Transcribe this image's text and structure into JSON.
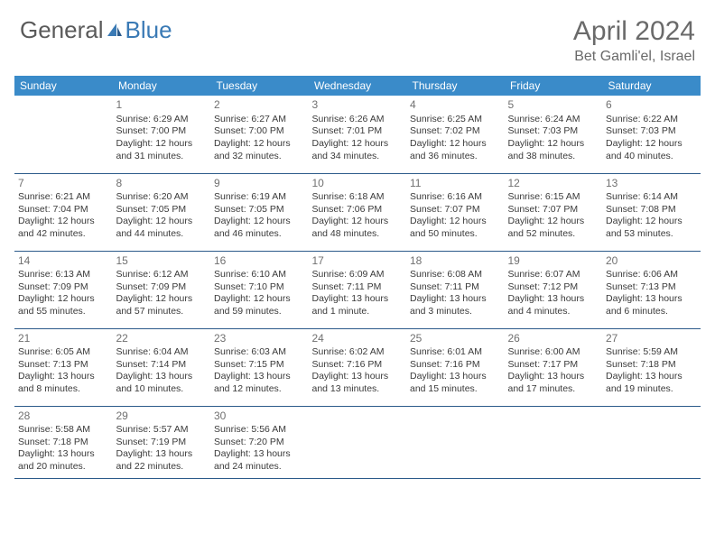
{
  "brand": {
    "part1": "General",
    "part2": "Blue"
  },
  "title": "April 2024",
  "location": "Bet Gamli'el, Israel",
  "day_headers": [
    "Sunday",
    "Monday",
    "Tuesday",
    "Wednesday",
    "Thursday",
    "Friday",
    "Saturday"
  ],
  "colors": {
    "header_bg": "#3a8bc9",
    "header_text": "#ffffff",
    "border": "#2b5a8a",
    "brand_blue": "#3a7ab5",
    "text": "#3a3a3a",
    "muted": "#6a6a6a"
  },
  "weeks": [
    [
      {},
      {
        "n": "1",
        "sr": "Sunrise: 6:29 AM",
        "ss": "Sunset: 7:00 PM",
        "d1": "Daylight: 12 hours",
        "d2": "and 31 minutes."
      },
      {
        "n": "2",
        "sr": "Sunrise: 6:27 AM",
        "ss": "Sunset: 7:00 PM",
        "d1": "Daylight: 12 hours",
        "d2": "and 32 minutes."
      },
      {
        "n": "3",
        "sr": "Sunrise: 6:26 AM",
        "ss": "Sunset: 7:01 PM",
        "d1": "Daylight: 12 hours",
        "d2": "and 34 minutes."
      },
      {
        "n": "4",
        "sr": "Sunrise: 6:25 AM",
        "ss": "Sunset: 7:02 PM",
        "d1": "Daylight: 12 hours",
        "d2": "and 36 minutes."
      },
      {
        "n": "5",
        "sr": "Sunrise: 6:24 AM",
        "ss": "Sunset: 7:03 PM",
        "d1": "Daylight: 12 hours",
        "d2": "and 38 minutes."
      },
      {
        "n": "6",
        "sr": "Sunrise: 6:22 AM",
        "ss": "Sunset: 7:03 PM",
        "d1": "Daylight: 12 hours",
        "d2": "and 40 minutes."
      }
    ],
    [
      {
        "n": "7",
        "sr": "Sunrise: 6:21 AM",
        "ss": "Sunset: 7:04 PM",
        "d1": "Daylight: 12 hours",
        "d2": "and 42 minutes."
      },
      {
        "n": "8",
        "sr": "Sunrise: 6:20 AM",
        "ss": "Sunset: 7:05 PM",
        "d1": "Daylight: 12 hours",
        "d2": "and 44 minutes."
      },
      {
        "n": "9",
        "sr": "Sunrise: 6:19 AM",
        "ss": "Sunset: 7:05 PM",
        "d1": "Daylight: 12 hours",
        "d2": "and 46 minutes."
      },
      {
        "n": "10",
        "sr": "Sunrise: 6:18 AM",
        "ss": "Sunset: 7:06 PM",
        "d1": "Daylight: 12 hours",
        "d2": "and 48 minutes."
      },
      {
        "n": "11",
        "sr": "Sunrise: 6:16 AM",
        "ss": "Sunset: 7:07 PM",
        "d1": "Daylight: 12 hours",
        "d2": "and 50 minutes."
      },
      {
        "n": "12",
        "sr": "Sunrise: 6:15 AM",
        "ss": "Sunset: 7:07 PM",
        "d1": "Daylight: 12 hours",
        "d2": "and 52 minutes."
      },
      {
        "n": "13",
        "sr": "Sunrise: 6:14 AM",
        "ss": "Sunset: 7:08 PM",
        "d1": "Daylight: 12 hours",
        "d2": "and 53 minutes."
      }
    ],
    [
      {
        "n": "14",
        "sr": "Sunrise: 6:13 AM",
        "ss": "Sunset: 7:09 PM",
        "d1": "Daylight: 12 hours",
        "d2": "and 55 minutes."
      },
      {
        "n": "15",
        "sr": "Sunrise: 6:12 AM",
        "ss": "Sunset: 7:09 PM",
        "d1": "Daylight: 12 hours",
        "d2": "and 57 minutes."
      },
      {
        "n": "16",
        "sr": "Sunrise: 6:10 AM",
        "ss": "Sunset: 7:10 PM",
        "d1": "Daylight: 12 hours",
        "d2": "and 59 minutes."
      },
      {
        "n": "17",
        "sr": "Sunrise: 6:09 AM",
        "ss": "Sunset: 7:11 PM",
        "d1": "Daylight: 13 hours",
        "d2": "and 1 minute."
      },
      {
        "n": "18",
        "sr": "Sunrise: 6:08 AM",
        "ss": "Sunset: 7:11 PM",
        "d1": "Daylight: 13 hours",
        "d2": "and 3 minutes."
      },
      {
        "n": "19",
        "sr": "Sunrise: 6:07 AM",
        "ss": "Sunset: 7:12 PM",
        "d1": "Daylight: 13 hours",
        "d2": "and 4 minutes."
      },
      {
        "n": "20",
        "sr": "Sunrise: 6:06 AM",
        "ss": "Sunset: 7:13 PM",
        "d1": "Daylight: 13 hours",
        "d2": "and 6 minutes."
      }
    ],
    [
      {
        "n": "21",
        "sr": "Sunrise: 6:05 AM",
        "ss": "Sunset: 7:13 PM",
        "d1": "Daylight: 13 hours",
        "d2": "and 8 minutes."
      },
      {
        "n": "22",
        "sr": "Sunrise: 6:04 AM",
        "ss": "Sunset: 7:14 PM",
        "d1": "Daylight: 13 hours",
        "d2": "and 10 minutes."
      },
      {
        "n": "23",
        "sr": "Sunrise: 6:03 AM",
        "ss": "Sunset: 7:15 PM",
        "d1": "Daylight: 13 hours",
        "d2": "and 12 minutes."
      },
      {
        "n": "24",
        "sr": "Sunrise: 6:02 AM",
        "ss": "Sunset: 7:16 PM",
        "d1": "Daylight: 13 hours",
        "d2": "and 13 minutes."
      },
      {
        "n": "25",
        "sr": "Sunrise: 6:01 AM",
        "ss": "Sunset: 7:16 PM",
        "d1": "Daylight: 13 hours",
        "d2": "and 15 minutes."
      },
      {
        "n": "26",
        "sr": "Sunrise: 6:00 AM",
        "ss": "Sunset: 7:17 PM",
        "d1": "Daylight: 13 hours",
        "d2": "and 17 minutes."
      },
      {
        "n": "27",
        "sr": "Sunrise: 5:59 AM",
        "ss": "Sunset: 7:18 PM",
        "d1": "Daylight: 13 hours",
        "d2": "and 19 minutes."
      }
    ],
    [
      {
        "n": "28",
        "sr": "Sunrise: 5:58 AM",
        "ss": "Sunset: 7:18 PM",
        "d1": "Daylight: 13 hours",
        "d2": "and 20 minutes."
      },
      {
        "n": "29",
        "sr": "Sunrise: 5:57 AM",
        "ss": "Sunset: 7:19 PM",
        "d1": "Daylight: 13 hours",
        "d2": "and 22 minutes."
      },
      {
        "n": "30",
        "sr": "Sunrise: 5:56 AM",
        "ss": "Sunset: 7:20 PM",
        "d1": "Daylight: 13 hours",
        "d2": "and 24 minutes."
      },
      {},
      {},
      {},
      {}
    ]
  ]
}
